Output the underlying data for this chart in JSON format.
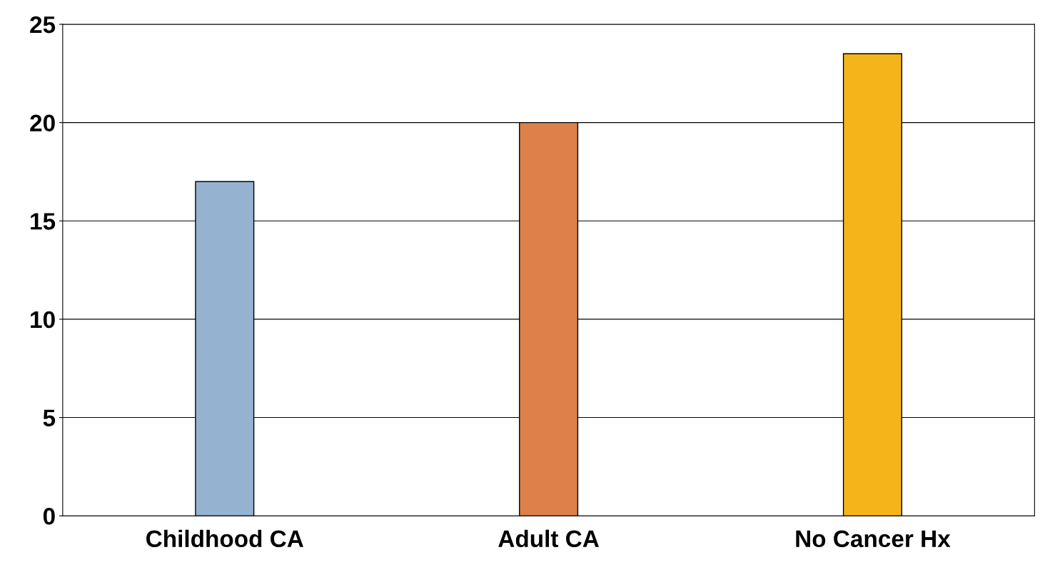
{
  "chart_data": {
    "type": "bar",
    "categories": [
      "Childhood CA",
      "Adult CA",
      "No Cancer Hx"
    ],
    "values": [
      17,
      20,
      23.5
    ],
    "colors": [
      "#95b3d1",
      "#dd8049",
      "#f5b419"
    ],
    "ylim": [
      0,
      25
    ],
    "yticks": [
      0,
      5,
      10,
      15,
      20,
      25
    ],
    "grid": "y"
  }
}
